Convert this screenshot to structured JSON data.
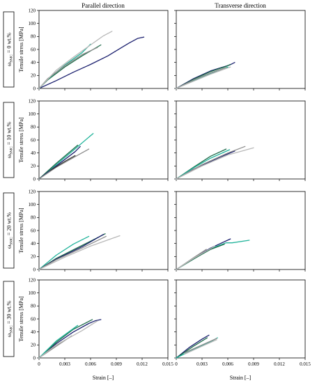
{
  "col_titles": [
    "Parallel direction",
    "Transverse direction"
  ],
  "row_labels": [
    {
      "sym": "ω",
      "sub": "SMC",
      "rest": " = 0 wt.%"
    },
    {
      "sym": "ω",
      "sub": "SMC",
      "rest": " = 10 wt.%"
    },
    {
      "sym": "ω",
      "sub": "SMC",
      "rest": " = 20 wt.%"
    },
    {
      "sym": "ω",
      "sub": "SMC",
      "rest": " = 30 wt.%"
    }
  ],
  "ylabel": "Tensile stress  [MPa]",
  "xlabel": "Strain  [–]",
  "xticks": [
    "0",
    "0.003",
    "0.006",
    "0.009",
    "0.012",
    "0.015"
  ],
  "yticks": [
    "0",
    "20",
    "40",
    "60",
    "80",
    "100",
    "120"
  ],
  "colors": {
    "navy": "#1a1f6e",
    "green": "#1e6b4a",
    "teal": "#20b39a",
    "gray": "#8c8c8c",
    "lightgray": "#b8b8b8",
    "darkgray": "#3d3d3d"
  },
  "chart_data": [
    {
      "type": "line",
      "row": 0,
      "col": 0,
      "xlim": [
        0,
        0.015
      ],
      "ylim": [
        0,
        120
      ],
      "series": [
        {
          "color": "#1a1f6e",
          "x": [
            0,
            0.002,
            0.004,
            0.006,
            0.008,
            0.0095,
            0.0105,
            0.0115,
            0.0122
          ],
          "y": [
            0,
            12,
            25,
            37,
            50,
            62,
            70,
            77,
            79
          ]
        },
        {
          "color": "#1e6b4a",
          "x": [
            0,
            0.001,
            0.003,
            0.005,
            0.0072
          ],
          "y": [
            0,
            13,
            33,
            50,
            67
          ]
        },
        {
          "color": "#20b39a",
          "x": [
            0,
            0.001,
            0.003,
            0.005,
            0.006
          ],
          "y": [
            0,
            14,
            36,
            55,
            68
          ]
        },
        {
          "color": "#8c8c8c",
          "x": [
            0,
            0.001,
            0.003,
            0.005,
            0.0068
          ],
          "y": [
            0,
            15,
            35,
            52,
            63
          ]
        },
        {
          "color": "#b8b8b8",
          "x": [
            0,
            0.002,
            0.004,
            0.006,
            0.0075,
            0.0085
          ],
          "y": [
            0,
            28,
            48,
            67,
            81,
            88
          ]
        }
      ]
    },
    {
      "type": "line",
      "row": 0,
      "col": 1,
      "xlim": [
        0,
        0.015
      ],
      "ylim": [
        0,
        120
      ],
      "series": [
        {
          "color": "#1a1f6e",
          "x": [
            0,
            0.002,
            0.004,
            0.0062,
            0.0068
          ],
          "y": [
            0,
            15,
            27,
            36,
            40
          ]
        },
        {
          "color": "#1e6b4a",
          "x": [
            0,
            0.002,
            0.004,
            0.0058,
            0.0063
          ],
          "y": [
            0,
            14,
            26,
            34,
            37
          ]
        },
        {
          "color": "#20b39a",
          "x": [
            0,
            0.002,
            0.004,
            0.0055,
            0.006
          ],
          "y": [
            0,
            12,
            23,
            31,
            33
          ]
        },
        {
          "color": "#8c8c8c",
          "x": [
            0,
            0.002,
            0.004,
            0.0058
          ],
          "y": [
            0,
            13,
            24,
            32
          ]
        },
        {
          "color": "#b8b8b8",
          "x": [
            0,
            0.002,
            0.004,
            0.0063
          ],
          "y": [
            0,
            11,
            22,
            33
          ]
        }
      ]
    },
    {
      "type": "line",
      "row": 1,
      "col": 0,
      "xlim": [
        0,
        0.015
      ],
      "ylim": [
        0,
        120
      ],
      "series": [
        {
          "color": "#20b39a",
          "x": [
            0,
            0.002,
            0.004,
            0.0063
          ],
          "y": [
            0,
            22,
            44,
            70
          ]
        },
        {
          "color": "#1e6b4a",
          "x": [
            0,
            0.002,
            0.0045
          ],
          "y": [
            0,
            24,
            52
          ]
        },
        {
          "color": "#1a1f6e",
          "x": [
            0,
            0.002,
            0.0042,
            0.0048
          ],
          "y": [
            0,
            20,
            42,
            50
          ]
        },
        {
          "color": "#8c8c8c",
          "x": [
            0,
            0.002,
            0.0043,
            0.0058
          ],
          "y": [
            0,
            18,
            35,
            46
          ]
        },
        {
          "color": "#3d3d3d",
          "x": [
            0.0013,
            0.003,
            0.0042
          ],
          "y": [
            13,
            27,
            36
          ]
        }
      ]
    },
    {
      "type": "line",
      "row": 1,
      "col": 1,
      "xlim": [
        0,
        0.015
      ],
      "ylim": [
        0,
        120
      ],
      "series": [
        {
          "color": "#1e6b4a",
          "x": [
            0,
            0.002,
            0.004,
            0.0058
          ],
          "y": [
            0,
            18,
            35,
            46
          ]
        },
        {
          "color": "#1a1f6e",
          "x": [
            0,
            0.002,
            0.005,
            0.0068
          ],
          "y": [
            0,
            15,
            33,
            43
          ]
        },
        {
          "color": "#20b39a",
          "x": [
            0,
            0.002,
            0.004,
            0.0062
          ],
          "y": [
            0,
            17,
            32,
            45
          ]
        },
        {
          "color": "#8c8c8c",
          "x": [
            0,
            0.003,
            0.006,
            0.008
          ],
          "y": [
            0,
            22,
            40,
            50
          ]
        },
        {
          "color": "#b8b8b8",
          "x": [
            0,
            0.003,
            0.006,
            0.009
          ],
          "y": [
            0,
            20,
            37,
            48
          ]
        }
      ]
    },
    {
      "type": "line",
      "row": 2,
      "col": 0,
      "xlim": [
        0,
        0.015
      ],
      "ylim": [
        0,
        120
      ],
      "series": [
        {
          "color": "#20b39a",
          "x": [
            0,
            0.002,
            0.004,
            0.0058
          ],
          "y": [
            0,
            22,
            39,
            51
          ]
        },
        {
          "color": "#1e6b4a",
          "x": [
            0,
            0.002,
            0.005,
            0.0077
          ],
          "y": [
            0,
            17,
            37,
            55
          ]
        },
        {
          "color": "#1a1f6e",
          "x": [
            0,
            0.002,
            0.005,
            0.0075
          ],
          "y": [
            0,
            16,
            35,
            54
          ]
        },
        {
          "color": "#8c8c8c",
          "x": [
            0,
            0.002,
            0.005,
            0.0078
          ],
          "y": [
            0,
            15,
            33,
            51
          ]
        },
        {
          "color": "#b8b8b8",
          "x": [
            0,
            0.003,
            0.006,
            0.0094
          ],
          "y": [
            0,
            19,
            36,
            52
          ]
        }
      ]
    },
    {
      "type": "line",
      "row": 2,
      "col": 1,
      "xlim": [
        0,
        0.015
      ],
      "ylim": [
        0,
        120
      ],
      "series": [
        {
          "color": "#1a1f6e",
          "x": [
            0,
            0.002,
            0.004,
            0.0063
          ],
          "y": [
            0,
            17,
            33,
            47
          ]
        },
        {
          "color": "#20b39a",
          "x": [
            0,
            0.002,
            0.004,
            0.0058,
            0.0065,
            0.0085
          ],
          "y": [
            0,
            16,
            32,
            41,
            41,
            45
          ]
        },
        {
          "color": "#1e6b4a",
          "x": [
            0,
            0.002,
            0.004,
            0.0056
          ],
          "y": [
            0,
            16,
            31,
            39
          ]
        },
        {
          "color": "#8c8c8c",
          "x": [
            0,
            0.002,
            0.0035
          ],
          "y": [
            0,
            18,
            31
          ]
        },
        {
          "color": "#b8b8b8",
          "x": [
            0,
            0.002,
            0.0045
          ],
          "y": [
            0,
            17,
            36
          ]
        }
      ]
    },
    {
      "type": "line",
      "row": 3,
      "col": 0,
      "xlim": [
        0,
        0.015
      ],
      "ylim": [
        0,
        120
      ],
      "series": [
        {
          "color": "#1a1f6e",
          "x": [
            0,
            0.002,
            0.004,
            0.0058,
            0.0065,
            0.0072
          ],
          "y": [
            0,
            22,
            40,
            53,
            57,
            59
          ]
        },
        {
          "color": "#1e6b4a",
          "x": [
            0,
            0.002,
            0.004,
            0.0062
          ],
          "y": [
            0,
            24,
            44,
            59
          ]
        },
        {
          "color": "#20b39a",
          "x": [
            0,
            0.002,
            0.0045
          ],
          "y": [
            0,
            26,
            50
          ]
        },
        {
          "color": "#8c8c8c",
          "x": [
            0,
            0.002,
            0.0038
          ],
          "y": [
            0,
            18,
            34
          ]
        },
        {
          "color": "#b8b8b8",
          "x": [
            0,
            0.002,
            0.005,
            0.0068
          ],
          "y": [
            0,
            20,
            42,
            57
          ]
        }
      ]
    },
    {
      "type": "line",
      "row": 3,
      "col": 1,
      "xlim": [
        0,
        0.015
      ],
      "ylim": [
        0,
        120
      ],
      "series": [
        {
          "color": "#1a1f6e",
          "x": [
            0,
            0.0015,
            0.003,
            0.0038
          ],
          "y": [
            0,
            16,
            29,
            35
          ]
        },
        {
          "color": "#1e6b4a",
          "x": [
            0,
            0.002,
            0.0036
          ],
          "y": [
            0,
            18,
            31
          ]
        },
        {
          "color": "#20b39a",
          "x": [
            0,
            0.002,
            0.004,
            0.0048
          ],
          "y": [
            0,
            13,
            25,
            31
          ]
        },
        {
          "color": "#8c8c8c",
          "x": [
            0.001,
            0.003,
            0.0047
          ],
          "y": [
            8,
            20,
            30
          ]
        },
        {
          "color": "#b8b8b8",
          "x": [
            0.001,
            0.003,
            0.0047
          ],
          "y": [
            6,
            18,
            28
          ]
        }
      ]
    }
  ]
}
